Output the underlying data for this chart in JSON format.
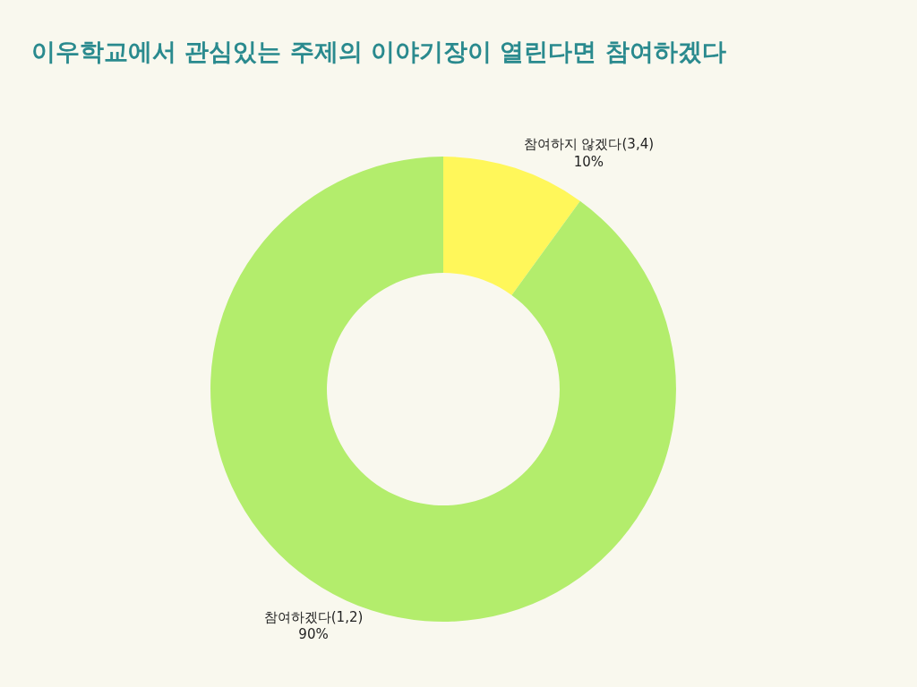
{
  "chart_data": {
    "type": "donut",
    "title": "이우학교에서 관심있는 주제의 이야기장이 열린다면 참여하겠다",
    "categories": [
      "참여하지 않겠다(3,4)",
      "참여하겠다(1,2)"
    ],
    "values": [
      10,
      90
    ],
    "value_labels": [
      "10%",
      "90%"
    ],
    "colors": [
      "#fff75a",
      "#b3ed6c"
    ],
    "legend": false
  }
}
